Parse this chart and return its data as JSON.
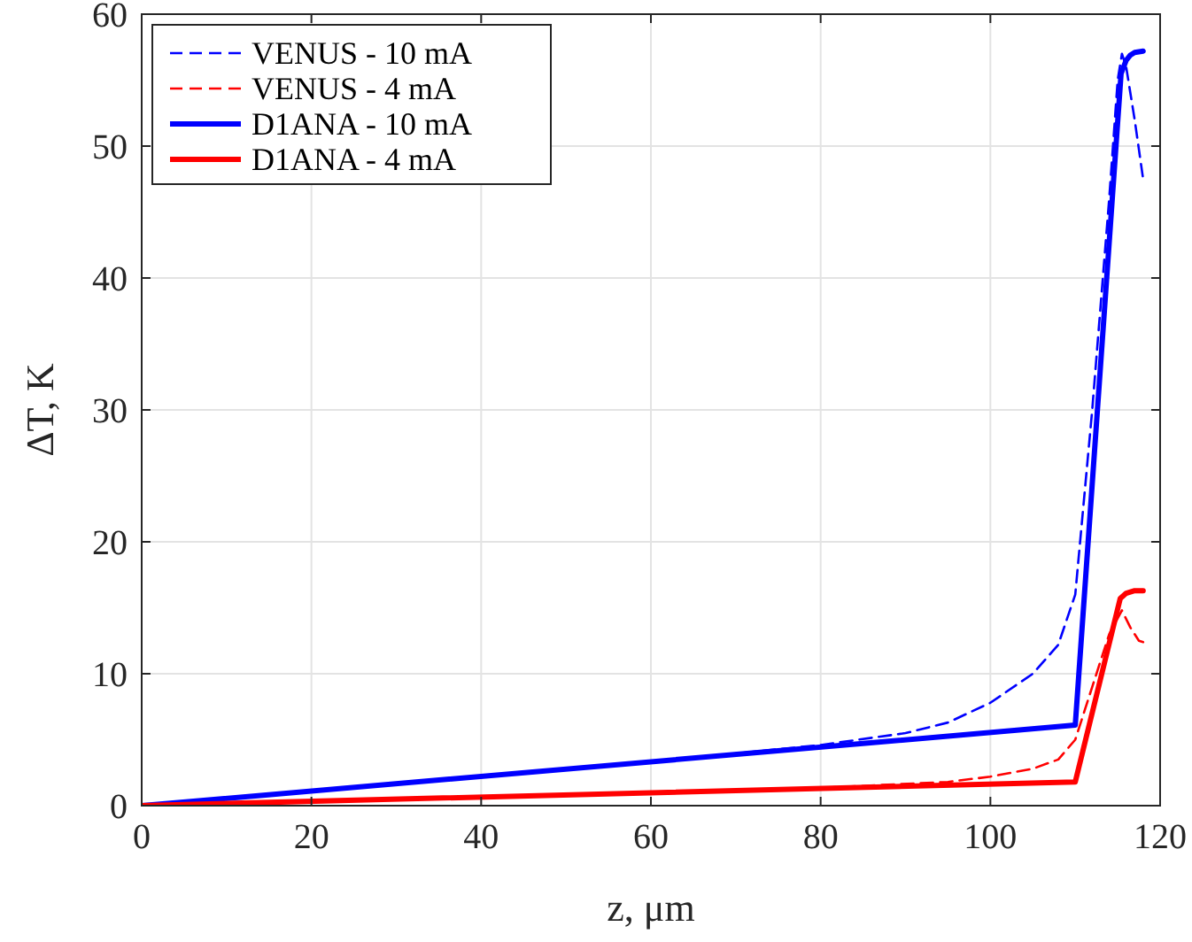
{
  "chart_data": {
    "type": "line",
    "xlabel": "z, μm",
    "ylabel": "ΔT, K",
    "xlim": [
      0,
      120
    ],
    "ylim": [
      0,
      60
    ],
    "xticks": [
      0,
      20,
      40,
      60,
      80,
      100,
      120
    ],
    "yticks": [
      0,
      10,
      20,
      30,
      40,
      50,
      60
    ],
    "grid": true,
    "legend": "top left",
    "series": [
      {
        "name": "VENUS - 10 mA",
        "color": "#0000ff",
        "line_style": "dashed",
        "x": [
          0,
          20,
          40,
          60,
          80,
          90,
          95,
          100,
          105,
          108,
          110,
          112,
          114,
          115,
          115.5,
          116,
          117,
          118
        ],
        "values": [
          0,
          1.1,
          2.2,
          3.3,
          4.6,
          5.5,
          6.3,
          7.8,
          10,
          12.2,
          16,
          30,
          46,
          55,
          57,
          56,
          52,
          47.5
        ]
      },
      {
        "name": "VENUS - 4 mA",
        "color": "#ff0000",
        "line_style": "dashed",
        "x": [
          0,
          40,
          80,
          95,
          100,
          105,
          108,
          110,
          112,
          114,
          115.5,
          116.5,
          117.5,
          118
        ],
        "values": [
          0,
          0.7,
          1.35,
          1.8,
          2.2,
          2.8,
          3.5,
          5,
          9,
          13,
          14.8,
          13.5,
          12.5,
          12.4
        ]
      },
      {
        "name": "D1ANA - 10 mA",
        "color": "#0000ff",
        "line_style": "solid",
        "x": [
          0,
          110,
          115.4,
          116,
          116.5,
          117,
          118
        ],
        "values": [
          0,
          6.1,
          55.5,
          56.5,
          56.9,
          57.1,
          57.2
        ]
      },
      {
        "name": "D1ANA - 4 mA",
        "color": "#ff0000",
        "line_style": "solid",
        "x": [
          0,
          110,
          115.3,
          116,
          116.5,
          117,
          118
        ],
        "values": [
          0,
          1.8,
          15.7,
          16.1,
          16.2,
          16.3,
          16.3
        ]
      }
    ]
  }
}
